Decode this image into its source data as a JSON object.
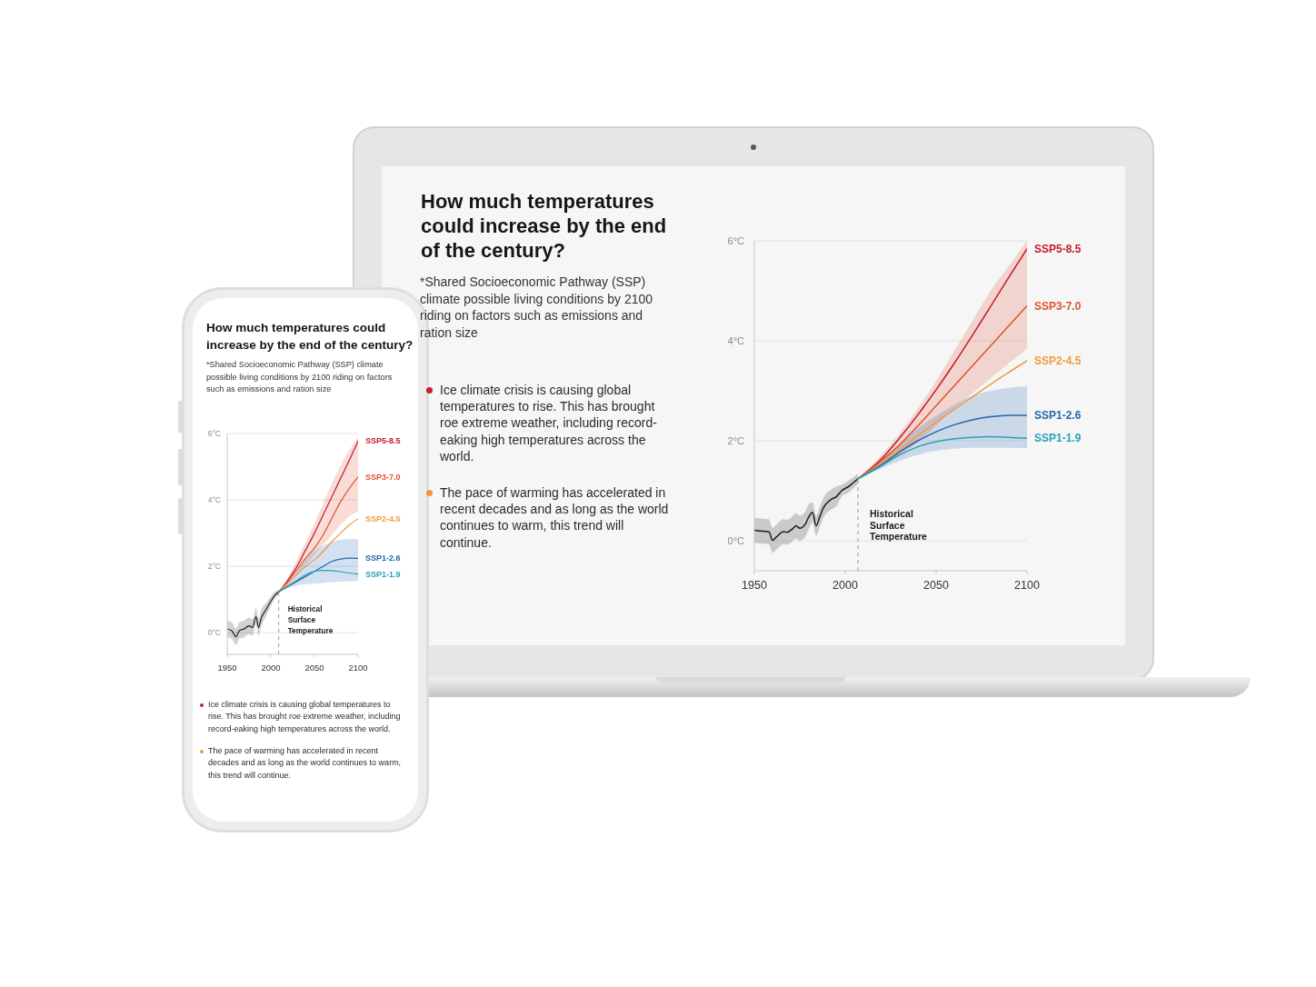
{
  "chart_data": [
    {
      "type": "line",
      "title": "How much temperatures could increase by the end of the century?",
      "subtitle": "*Shared Socioeconomic Pathway (SSP) climate possible living conditions by 2100 riding on factors such as emissions and ration size",
      "annotations": [
        "Ice climate crisis is causing global temperatures to rise. This has brought roe extreme weather, including record-eaking high temperatures across the world.",
        "The pace of warming has accelerated in recent decades and as long as the world continues to warm, this trend will continue."
      ],
      "xlim": [
        1950,
        2100
      ],
      "xticks": [
        1950,
        2000,
        2050,
        2100
      ],
      "ylim": [
        -0.6,
        6
      ],
      "yticks": [
        {
          "value": 0,
          "label": "0°C"
        },
        {
          "value": 2,
          "label": "2°C"
        },
        {
          "value": 4,
          "label": "4°C"
        },
        {
          "value": 6,
          "label": "6°C"
        }
      ],
      "grid": "y",
      "marker": "none",
      "line_style": "solid",
      "ref_lines": [
        {
          "axis": "x",
          "value": 2007,
          "label": "Historical Surface Temperature",
          "color": "#9a9a9a",
          "line_style": "dashed"
        }
      ],
      "series": [
        {
          "color": "#1c1c1c",
          "x": [
            1950,
            1955,
            1958,
            1960,
            1962,
            1966,
            1968,
            1971,
            1973,
            1975,
            1978,
            1980,
            1982,
            1984,
            1986,
            1988,
            1992,
            1995,
            1998,
            2002,
            2007
          ],
          "values": [
            0.21,
            0.19,
            0.18,
            0.01,
            0.07,
            0.18,
            0.17,
            0.24,
            0.3,
            0.25,
            0.33,
            0.48,
            0.57,
            0.3,
            0.48,
            0.66,
            0.82,
            0.88,
            1.0,
            1.09,
            1.24
          ],
          "lower": [
            -0.04,
            -0.06,
            -0.07,
            -0.24,
            -0.18,
            -0.07,
            -0.08,
            -0.01,
            0.05,
            0.0,
            0.08,
            0.23,
            0.37,
            0.1,
            0.28,
            0.46,
            0.62,
            0.68,
            0.88,
            0.97,
            1.14
          ],
          "upper": [
            0.46,
            0.44,
            0.43,
            0.26,
            0.32,
            0.43,
            0.42,
            0.49,
            0.55,
            0.5,
            0.58,
            0.73,
            0.77,
            0.5,
            0.68,
            0.86,
            1.02,
            1.08,
            1.12,
            1.21,
            1.34
          ]
        },
        {
          "name": "SSP5-8.5",
          "color": "#c41a2b",
          "x": [
            2007,
            2020,
            2030,
            2040,
            2050,
            2060,
            2070,
            2080,
            2090,
            2100
          ],
          "values": [
            1.24,
            1.64,
            2.06,
            2.52,
            3.02,
            3.55,
            4.11,
            4.69,
            5.27,
            5.84
          ]
        },
        {
          "name": "SSP3-7.0",
          "color": "#df5230",
          "x": [
            2007,
            2020,
            2030,
            2040,
            2050,
            2060,
            2070,
            2080,
            2090,
            2100
          ],
          "values": [
            1.24,
            1.6,
            1.92,
            2.3,
            2.7,
            3.1,
            3.5,
            3.9,
            4.3,
            4.7
          ],
          "lower": [
            1.24,
            1.5,
            1.72,
            1.98,
            2.3,
            2.65,
            2.95,
            3.25,
            3.55,
            3.84
          ],
          "upper": [
            1.24,
            1.72,
            2.15,
            2.65,
            3.2,
            3.8,
            4.4,
            5.0,
            5.5,
            6.0
          ]
        },
        {
          "name": "SSP2-4.5",
          "color": "#f29a3f",
          "x": [
            2007,
            2020,
            2030,
            2040,
            2050,
            2060,
            2070,
            2080,
            2090,
            2100
          ],
          "values": [
            1.24,
            1.55,
            1.83,
            2.1,
            2.37,
            2.63,
            2.88,
            3.13,
            3.37,
            3.6
          ]
        },
        {
          "name": "SSP1-2.6",
          "color": "#2466ad",
          "x": [
            2007,
            2020,
            2030,
            2040,
            2050,
            2060,
            2070,
            2080,
            2090,
            2100
          ],
          "values": [
            1.24,
            1.52,
            1.78,
            2.0,
            2.18,
            2.32,
            2.42,
            2.48,
            2.51,
            2.51
          ],
          "lower": [
            1.24,
            1.45,
            1.6,
            1.72,
            1.8,
            1.84,
            1.86,
            1.86,
            1.86,
            1.85
          ],
          "upper": [
            1.24,
            1.62,
            1.93,
            2.25,
            2.5,
            2.72,
            2.9,
            3.0,
            3.06,
            3.09
          ]
        },
        {
          "name": "SSP1-1.9",
          "color": "#2ba1b4",
          "x": [
            2007,
            2020,
            2030,
            2040,
            2050,
            2060,
            2070,
            2080,
            2090,
            2100
          ],
          "values": [
            1.24,
            1.5,
            1.72,
            1.88,
            1.98,
            2.04,
            2.07,
            2.08,
            2.07,
            2.05
          ]
        }
      ]
    },
    {
      "type": "line",
      "title": "How much temperatures could increase by the end of the century?",
      "subtitle": "*Shared Socioeconomic Pathway (SSP) climate possible living conditions by 2100 riding on factors such as emissions and ration size",
      "annotations": [
        "Ice climate crisis is causing global temperatures to rise. This has brought roe extreme weather, including record-eaking high temperatures across the world.",
        "The pace of warming has accelerated in recent decades and as long as the world continues to warm, this trend will continue."
      ],
      "xlim": [
        1950,
        2100
      ],
      "xticks": [
        1950,
        2000,
        2050,
        2100
      ],
      "ylim": [
        -0.65,
        6
      ],
      "yticks": [
        {
          "value": 0,
          "label": "0°C"
        },
        {
          "value": 2,
          "label": "2°C"
        },
        {
          "value": 4,
          "label": "4°C"
        },
        {
          "value": 6,
          "label": "6°C"
        }
      ],
      "grid": "y",
      "marker": "none",
      "line_style": "solid",
      "ref_lines": [
        {
          "axis": "x",
          "value": 2009,
          "label": "Historical Surface Temperature",
          "color": "#9a9a9a",
          "line_style": "dashed"
        }
      ],
      "series": [
        {
          "color": "#1c1c1c",
          "x": [
            1950,
            1955,
            1960,
            1964,
            1969,
            1975,
            1979,
            1983,
            1986,
            1989,
            1995,
            2000,
            2005,
            2009
          ],
          "values": [
            0.11,
            0.07,
            -0.12,
            0.07,
            0.11,
            0.21,
            0.16,
            0.49,
            0.16,
            0.44,
            0.72,
            0.95,
            1.14,
            1.23
          ],
          "lower": [
            -0.14,
            -0.18,
            -0.37,
            -0.18,
            -0.14,
            -0.04,
            -0.09,
            0.24,
            -0.09,
            0.19,
            0.52,
            0.8,
            1.04,
            1.16
          ],
          "upper": [
            0.36,
            0.32,
            0.13,
            0.32,
            0.36,
            0.46,
            0.41,
            0.74,
            0.41,
            0.69,
            0.92,
            1.1,
            1.24,
            1.3
          ]
        },
        {
          "name": "SSP5-8.5",
          "color": "#c41a2b",
          "x": [
            2009,
            2020,
            2030,
            2040,
            2050,
            2060,
            2070,
            2080,
            2090,
            2100
          ],
          "values": [
            1.23,
            1.6,
            2.0,
            2.5,
            3.0,
            3.55,
            4.1,
            4.65,
            5.2,
            5.77
          ]
        },
        {
          "name": "SSP3-7.0",
          "color": "#df5230",
          "x": [
            2009,
            2020,
            2030,
            2040,
            2050,
            2060,
            2070,
            2080,
            2090,
            2100
          ],
          "values": [
            1.23,
            1.55,
            1.9,
            2.25,
            2.55,
            2.95,
            3.45,
            3.95,
            4.35,
            4.69
          ],
          "lower": [
            1.23,
            1.5,
            1.75,
            2.05,
            2.35,
            2.65,
            2.95,
            3.25,
            3.5,
            3.66
          ],
          "upper": [
            1.23,
            1.7,
            2.2,
            2.75,
            3.3,
            3.9,
            4.5,
            5.05,
            5.5,
            5.9
          ]
        },
        {
          "name": "SSP2-4.5",
          "color": "#f29a3f",
          "x": [
            2009,
            2020,
            2030,
            2040,
            2050,
            2060,
            2070,
            2080,
            2090,
            2100
          ],
          "values": [
            1.23,
            1.5,
            1.75,
            2.0,
            2.2,
            2.45,
            2.75,
            3.0,
            3.25,
            3.43
          ]
        },
        {
          "name": "SSP1-2.6",
          "color": "#2466ad",
          "x": [
            2009,
            2020,
            2030,
            2040,
            2050,
            2060,
            2070,
            2080,
            2090,
            2100
          ],
          "values": [
            1.23,
            1.4,
            1.55,
            1.7,
            1.85,
            2.0,
            2.15,
            2.22,
            2.25,
            2.24
          ],
          "lower": [
            1.23,
            1.35,
            1.42,
            1.46,
            1.48,
            1.5,
            1.52,
            1.54,
            1.55,
            1.56
          ],
          "upper": [
            1.23,
            1.5,
            1.85,
            2.2,
            2.45,
            2.62,
            2.74,
            2.8,
            2.82,
            2.82
          ]
        },
        {
          "name": "SSP1-1.9",
          "color": "#2ba1b4",
          "x": [
            2009,
            2020,
            2030,
            2040,
            2050,
            2060,
            2070,
            2080,
            2090,
            2100
          ],
          "values": [
            1.23,
            1.42,
            1.58,
            1.75,
            1.85,
            1.88,
            1.87,
            1.84,
            1.8,
            1.77
          ]
        }
      ]
    }
  ]
}
